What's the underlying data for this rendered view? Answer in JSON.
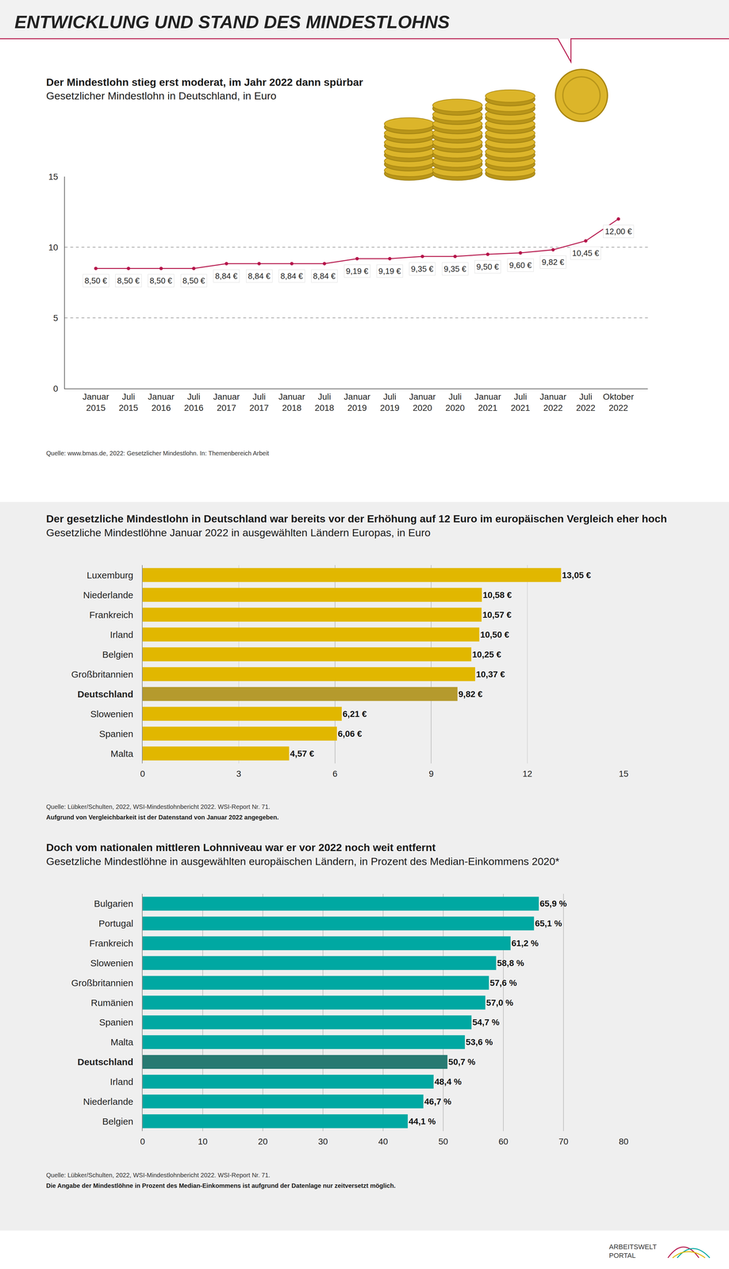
{
  "header": {
    "title": "ENTWICKLUNG UND STAND DES MINDESTLOHNS"
  },
  "chart_data": [
    {
      "type": "line",
      "title": "Der Mindestlohn stieg erst moderat, im Jahr 2022 dann spürbar",
      "subtitle": "Gesetzlicher Mindestlohn in Deutschland, in Euro",
      "categories": [
        "Januar 2015",
        "Juli 2015",
        "Januar 2016",
        "Juli 2016",
        "Januar 2017",
        "Juli 2017",
        "Januar 2018",
        "Juli 2018",
        "Januar 2019",
        "Juli 2019",
        "Januar 2020",
        "Juli 2020",
        "Januar 2021",
        "Juli 2021",
        "Januar 2022",
        "Juli 2022",
        "Oktober 2022"
      ],
      "values": [
        8.5,
        8.5,
        8.5,
        8.5,
        8.84,
        8.84,
        8.84,
        8.84,
        9.19,
        9.19,
        9.35,
        9.35,
        9.5,
        9.6,
        9.82,
        10.45,
        12.0
      ],
      "value_labels": [
        "8,50 €",
        "8,50 €",
        "8,50 €",
        "8,50 €",
        "8,84 €",
        "8,84 €",
        "8,84 €",
        "8,84 €",
        "9,19 €",
        "9,19 €",
        "9,35 €",
        "9,35 €",
        "9,50 €",
        "9,60 €",
        "9,82 €",
        "10,45 €",
        "12,00 €"
      ],
      "color": "#b5164b",
      "marker": "circle",
      "ylim": [
        0,
        15
      ],
      "yticks": [
        0,
        5,
        10,
        15
      ],
      "grid": true,
      "data_labels": true,
      "source": "Quelle: www.bmas.de, 2022: Gesetzlicher Mindestlohn. In: Themenbereich Arbeit"
    },
    {
      "type": "bar",
      "orientation": "horizontal",
      "title": "Der gesetzliche Mindestlohn in Deutschland war bereits vor der Erhöhung auf 12 Euro im europäischen Vergleich eher hoch",
      "subtitle": "Gesetzliche Mindestlöhne Januar 2022 in ausgewählten Ländern Europas, in Euro",
      "categories": [
        "Luxemburg",
        "Niederlande",
        "Frankreich",
        "Irland",
        "Belgien",
        "Großbritannien",
        "Deutschland",
        "Slowenien",
        "Spanien",
        "Malta"
      ],
      "values": [
        13.05,
        10.58,
        10.57,
        10.5,
        10.25,
        10.37,
        9.82,
        6.21,
        6.06,
        4.57
      ],
      "value_labels": [
        "13,05 €",
        "10,58 €",
        "10,57 €",
        "10,50 €",
        "10,25 €",
        "10,37 €",
        "9,82 €",
        "6,21 €",
        "6,06 €",
        "4,57 €"
      ],
      "colors": [
        "#e1b700",
        "#e1b700",
        "#e1b700",
        "#e1b700",
        "#e1b700",
        "#e1b700",
        "#b59a2d",
        "#e1b700",
        "#e1b700",
        "#e1b700"
      ],
      "xlim": [
        0,
        15
      ],
      "xticks": [
        0,
        3,
        6,
        9,
        12,
        15
      ],
      "grid": true,
      "data_labels": true,
      "source": "Quelle: Lübker/Schulten, 2022, WSI-Mindestlohnbericht 2022. WSI-Report Nr. 71.",
      "note": "Aufgrund von Vergleichbarkeit ist der Datenstand von Januar 2022 angegeben."
    },
    {
      "type": "bar",
      "orientation": "horizontal",
      "title": "Doch vom nationalen mittleren Lohnniveau war er vor 2022 noch weit entfernt",
      "subtitle": "Gesetzliche Mindestlöhne in ausgewählten europäischen Ländern, in Prozent des Median-Einkommens 2020*",
      "categories": [
        "Bulgarien",
        "Portugal",
        "Frankreich",
        "Slowenien",
        "Großbritannien",
        "Rumänien",
        "Spanien",
        "Malta",
        "Deutschland",
        "Irland",
        "Niederlande",
        "Belgien"
      ],
      "values": [
        65.9,
        65.1,
        61.2,
        58.8,
        57.6,
        57.0,
        54.7,
        53.6,
        50.7,
        48.4,
        46.7,
        44.1
      ],
      "value_labels": [
        "65,9 %",
        "65,1 %",
        "61,2 %",
        "58,8 %",
        "57,6 %",
        "57,0 %",
        "54,7 %",
        "53,6 %",
        "50,7 %",
        "48,4 %",
        "46,7 %",
        "44,1 %"
      ],
      "colors": [
        "#00a8a2",
        "#00a8a2",
        "#00a8a2",
        "#00a8a2",
        "#00a8a2",
        "#00a8a2",
        "#00a8a2",
        "#00a8a2",
        "#277a72",
        "#00a8a2",
        "#00a8a2",
        "#00a8a2"
      ],
      "xlim": [
        0,
        80
      ],
      "xticks": [
        0,
        10,
        20,
        30,
        40,
        50,
        60,
        70,
        80
      ],
      "grid": true,
      "data_labels": true,
      "source": "Quelle: Lübker/Schulten, 2022, WSI-Mindestlohnbericht 2022. WSI-Report Nr. 71.",
      "note": "Die Angabe der Mindestlöhne in Prozent des Median-Einkommens ist aufgrund der Datenlage nur zeitversetzt möglich."
    }
  ],
  "footer": {
    "logo": [
      "ARBEITSWELT",
      "PORTAL"
    ]
  }
}
